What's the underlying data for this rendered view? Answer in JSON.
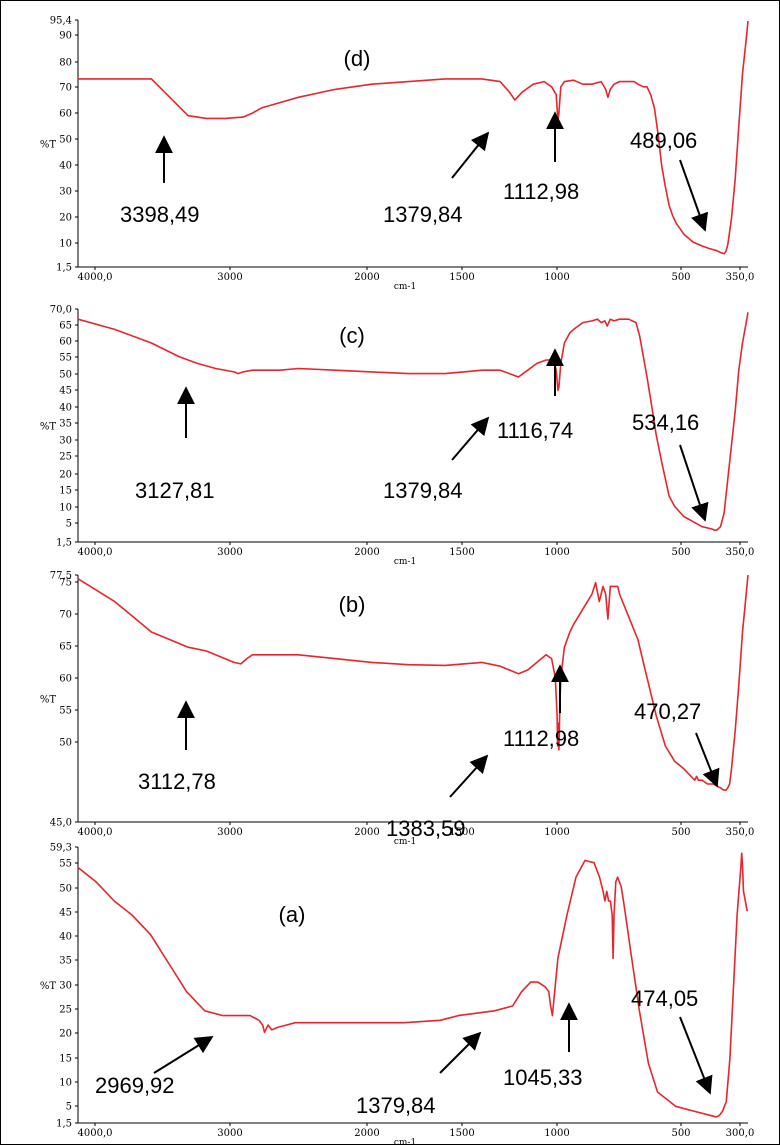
{
  "colors": {
    "line": "#e8252c",
    "axis": "#000000",
    "arrow": "#000000"
  },
  "chart_data": [
    {
      "type": "line",
      "panel_label": "(d)",
      "xlabel": "cm-1",
      "ylabel": "%T",
      "xlim": [
        4000,
        350
      ],
      "ylim": [
        1.5,
        95.4
      ],
      "x_ticks": [
        "4000,0",
        "3000",
        "2000",
        "1500",
        "1000",
        "500",
        "350,0"
      ],
      "y_ticks": [
        "95,4",
        "90",
        "80",
        "70",
        "60",
        "50",
        "40",
        "30",
        "20",
        "10",
        "1,5"
      ],
      "series": [
        {
          "x": [
            4000,
            3700,
            3600,
            3500,
            3400,
            3300,
            3200,
            3100,
            3050,
            3000,
            2900,
            2800,
            2600,
            2400,
            2200,
            2000,
            1900,
            1800,
            1700,
            1650,
            1620,
            1580,
            1520,
            1460,
            1420,
            1395,
            1385,
            1380,
            1370,
            1350,
            1300,
            1250,
            1200,
            1150,
            1125,
            1113,
            1100,
            1080,
            1050,
            1000,
            970,
            950,
            920,
            900,
            880,
            860,
            840,
            820,
            800,
            780,
            760,
            740,
            700,
            650,
            600,
            560,
            520,
            500,
            490,
            480,
            470,
            460,
            440,
            420,
            400,
            380,
            360,
            350
          ],
          "y": [
            73,
            73,
            73,
            66,
            59,
            58,
            58,
            58.5,
            60,
            62,
            64,
            66,
            69,
            71,
            72,
            73,
            73,
            73,
            72,
            68,
            65,
            68,
            71,
            72,
            70,
            67,
            57,
            60,
            70,
            72,
            72.5,
            71,
            71,
            72,
            69,
            66,
            69,
            71,
            72,
            72,
            72,
            71,
            70,
            70,
            67,
            62,
            52,
            40,
            32,
            25,
            21,
            18,
            14,
            11,
            9.5,
            8.5,
            7.7,
            7,
            6.8,
            6.5,
            7.5,
            10,
            20,
            35,
            55,
            75,
            88,
            95
          ]
        }
      ],
      "annotations": [
        {
          "text": "3398,49",
          "x": 3300,
          "y": 58
        },
        {
          "text": "1379,84",
          "x": 1380,
          "y": 57
        },
        {
          "text": "1112,98",
          "x": 1113,
          "y": 66
        },
        {
          "text": "489,06",
          "x": 490,
          "y": 6.8
        }
      ]
    },
    {
      "type": "line",
      "panel_label": "(c)",
      "xlabel": "cm-1",
      "ylabel": "%T",
      "xlim": [
        4000,
        350
      ],
      "ylim": [
        1.5,
        70.0
      ],
      "x_ticks": [
        "4000,0",
        "3000",
        "2000",
        "1500",
        "1000",
        "500",
        "350,0"
      ],
      "y_ticks": [
        "70,0",
        "65",
        "60",
        "55",
        "50",
        "45",
        "40",
        "35",
        "30",
        "25",
        "20",
        "15",
        "10",
        "5",
        "1,5"
      ],
      "series": [
        {
          "x": [
            4000,
            3800,
            3600,
            3450,
            3350,
            3250,
            3150,
            3127,
            3100,
            3050,
            3000,
            2900,
            2800,
            2600,
            2400,
            2200,
            2000,
            1900,
            1800,
            1700,
            1650,
            1600,
            1550,
            1500,
            1450,
            1410,
            1395,
            1385,
            1380,
            1370,
            1350,
            1320,
            1300,
            1250,
            1200,
            1170,
            1150,
            1130,
            1117,
            1100,
            1080,
            1050,
            1000,
            960,
            940,
            900,
            870,
            850,
            820,
            800,
            780,
            750,
            700,
            650,
            600,
            560,
            540,
            534,
            520,
            500,
            480,
            460,
            440,
            420,
            400,
            380,
            360,
            350
          ],
          "y": [
            67,
            64,
            60,
            56,
            54,
            52.5,
            51.5,
            51,
            51.5,
            52,
            52,
            52,
            52.5,
            52,
            51.5,
            51,
            51,
            51.5,
            52,
            52,
            51,
            50,
            52,
            54,
            55,
            55,
            52,
            46,
            47,
            54,
            60,
            63,
            64,
            66,
            66.5,
            67,
            66,
            66.5,
            65,
            67,
            66.5,
            67,
            67,
            66,
            62,
            50,
            40,
            33,
            25,
            20,
            15,
            12,
            9,
            7.5,
            6,
            5.5,
            5.2,
            5,
            5,
            6,
            10,
            20,
            30,
            40,
            52,
            60,
            66,
            69
          ]
        }
      ],
      "annotations": [
        {
          "text": "3127,81",
          "x": 3127,
          "y": 51
        },
        {
          "text": "1379,84",
          "x": 1385,
          "y": 46
        },
        {
          "text": "1116,74",
          "x": 1117,
          "y": 65
        },
        {
          "text": "534,16",
          "x": 534,
          "y": 5
        }
      ]
    },
    {
      "type": "line",
      "panel_label": "(b)",
      "xlabel": "cm-1",
      "ylabel": "%T",
      "xlim": [
        4000,
        350
      ],
      "ylim": [
        45.0,
        77.5
      ],
      "x_ticks": [
        "4000,0",
        "3000",
        "2000",
        "1500",
        "1000",
        "500",
        "350,0"
      ],
      "y_ticks": [
        "77,5",
        "75",
        "70",
        "65",
        "60",
        "55",
        "50",
        "45,0"
      ],
      "series": [
        {
          "x": [
            4000,
            3900,
            3800,
            3700,
            3600,
            3500,
            3400,
            3300,
            3200,
            3150,
            3113,
            3080,
            3050,
            3000,
            2900,
            2800,
            2600,
            2400,
            2200,
            2000,
            1900,
            1800,
            1700,
            1650,
            1600,
            1550,
            1500,
            1450,
            1420,
            1400,
            1390,
            1387,
            1384,
            1380,
            1375,
            1370,
            1350,
            1320,
            1300,
            1250,
            1200,
            1180,
            1160,
            1140,
            1125,
            1113,
            1100,
            1080,
            1060,
            1050,
            1000,
            950,
            900,
            850,
            800,
            750,
            700,
            660,
            640,
            630,
            620,
            600,
            570,
            540,
            500,
            490,
            480,
            470,
            460,
            450,
            440,
            420,
            400,
            380,
            360,
            350
          ],
          "y": [
            77,
            75.5,
            74,
            72,
            70,
            69,
            68,
            67.5,
            66.5,
            66,
            65.8,
            66.5,
            67,
            67,
            67,
            67,
            66.5,
            66,
            65.7,
            65.6,
            65.8,
            66,
            65.5,
            65,
            64.5,
            65,
            66,
            67,
            66.5,
            64,
            59,
            55,
            58,
            54.5,
            60,
            64,
            68,
            70,
            71,
            73,
            75,
            76.5,
            74,
            76,
            75,
            71.7,
            76,
            76,
            76,
            75,
            72,
            69,
            64,
            59,
            55,
            53,
            52,
            51,
            50.5,
            51,
            50.5,
            50.5,
            50,
            50,
            49.5,
            49.3,
            49.2,
            49.2,
            49.5,
            50,
            52,
            57,
            63,
            70,
            75,
            77.5
          ]
        }
      ],
      "annotations": [
        {
          "text": "3112,78",
          "x": 3113,
          "y": 65.8
        },
        {
          "text": "1383,59",
          "x": 1384,
          "y": 55
        },
        {
          "text": "1112,98",
          "x": 1113,
          "y": 71.7
        },
        {
          "text": "470,27",
          "x": 470,
          "y": 49.5
        }
      ]
    },
    {
      "type": "line",
      "panel_label": "(a)",
      "xlabel": "cm-1",
      "ylabel": "%T",
      "xlim": [
        4000,
        300
      ],
      "ylim": [
        1.5,
        59.3
      ],
      "x_ticks": [
        "4000,0",
        "3000",
        "2000",
        "1500",
        "1000",
        "500",
        "300,0"
      ],
      "y_ticks": [
        "59,3",
        "55",
        "50",
        "45",
        "40",
        "35",
        "30",
        "25",
        "20",
        "15",
        "10",
        "5",
        "1,5"
      ],
      "series": [
        {
          "x": [
            4000,
            3900,
            3800,
            3700,
            3600,
            3500,
            3400,
            3300,
            3200,
            3100,
            3050,
            3000,
            2980,
            2970,
            2950,
            2930,
            2900,
            2850,
            2800,
            2600,
            2400,
            2200,
            2000,
            1900,
            1800,
            1700,
            1600,
            1550,
            1500,
            1460,
            1420,
            1400,
            1390,
            1380,
            1370,
            1350,
            1300,
            1250,
            1200,
            1150,
            1120,
            1100,
            1090,
            1080,
            1070,
            1060,
            1050,
            1045,
            1040,
            1030,
            1020,
            1000,
            980,
            950,
            900,
            850,
            800,
            700,
            600,
            500,
            480,
            474,
            460,
            440,
            420,
            400,
            380,
            360,
            340,
            335,
            330,
            325,
            320,
            315,
            310,
            305,
            300
          ],
          "y": [
            55,
            52,
            48,
            45,
            41,
            35,
            29,
            25,
            24,
            24,
            24,
            23,
            22,
            20.5,
            22,
            21,
            21.5,
            22,
            22.5,
            22.5,
            22.5,
            22.5,
            23,
            24,
            24.5,
            25,
            26,
            29,
            31,
            31,
            30,
            29,
            26,
            24,
            28,
            36,
            45,
            53,
            56.5,
            56,
            53,
            50,
            48,
            50,
            48,
            48,
            45,
            36,
            45,
            52,
            53,
            51,
            46,
            38,
            25,
            14,
            8,
            5,
            4,
            3,
            2.8,
            2.8,
            3,
            4,
            6,
            15,
            30,
            45,
            55,
            58,
            55,
            50,
            49,
            48,
            47,
            46,
            46
          ]
        }
      ],
      "annotations": [
        {
          "text": "2969,92",
          "x": 2970,
          "y": 20.5
        },
        {
          "text": "1379,84",
          "x": 1380,
          "y": 24
        },
        {
          "text": "1045,33",
          "x": 1045,
          "y": 36
        },
        {
          "text": "474,05",
          "x": 474,
          "y": 2.8
        }
      ]
    }
  ]
}
